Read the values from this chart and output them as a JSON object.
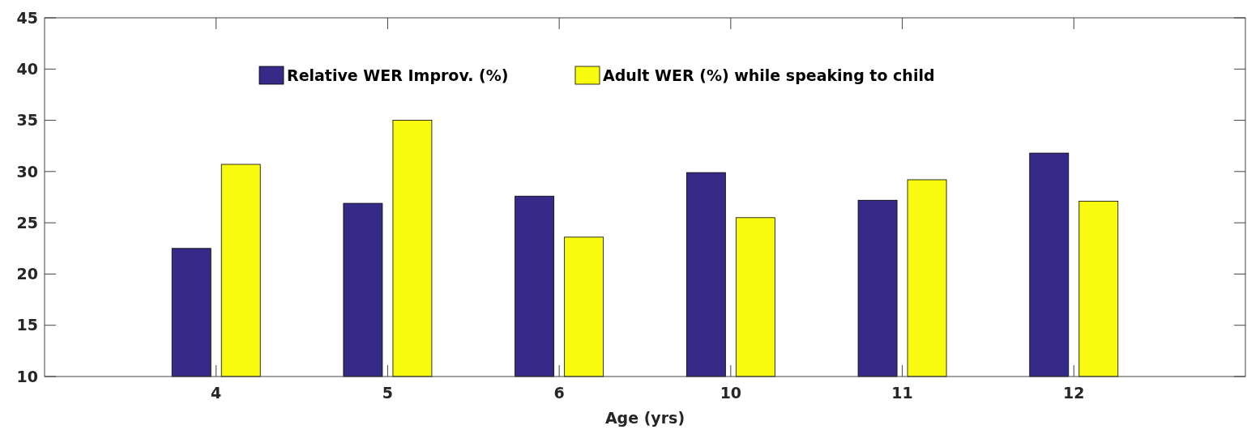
{
  "chart_data": {
    "type": "bar",
    "xlabel": "Age (yrs)",
    "categories": [
      "4",
      "5",
      "6",
      "10",
      "11",
      "12"
    ],
    "series": [
      {
        "name": "Relative WER Improv. (%)",
        "color": "#352a87",
        "values": [
          22.5,
          26.9,
          27.6,
          29.9,
          27.2,
          31.8
        ]
      },
      {
        "name": "Adult WER (%) while speaking to child",
        "color": "#f9fb0e",
        "values": [
          30.7,
          35.0,
          23.6,
          25.5,
          29.2,
          27.1
        ]
      }
    ],
    "ylim": [
      10,
      45
    ],
    "yticks": [
      10,
      15,
      20,
      25,
      30,
      35,
      40,
      45
    ],
    "grid": false,
    "legend": "top"
  }
}
